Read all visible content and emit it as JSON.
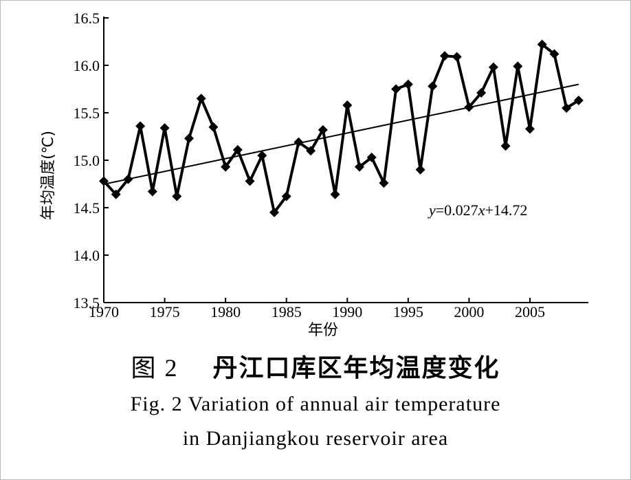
{
  "chart_data": {
    "type": "line",
    "title": "",
    "xlabel": "年份",
    "ylabel": "年均温度(℃)",
    "xlim": [
      1970,
      2009.8
    ],
    "ylim": [
      13.5,
      16.5
    ],
    "x_ticks": [
      "1970",
      "1975",
      "1980",
      "1985",
      "1990",
      "1995",
      "2000",
      "2005"
    ],
    "y_ticks": [
      "13.5",
      "14.0",
      "14.5",
      "15.0",
      "15.5",
      "16.0",
      "16.5"
    ],
    "grid": false,
    "legend": "none",
    "series": [
      {
        "x": [
          1970,
          1971,
          1972,
          1973,
          1974,
          1975,
          1976,
          1977,
          1978,
          1979,
          1980,
          1981,
          1982,
          1983,
          1984,
          1985,
          1986,
          1987,
          1988,
          1989,
          1990,
          1991,
          1992,
          1993,
          1994,
          1995,
          1996,
          1997,
          1998,
          1999,
          2000,
          2001,
          2002,
          2003,
          2004,
          2005,
          2006,
          2007,
          2008,
          2009
        ],
        "values": [
          14.78,
          14.64,
          14.8,
          15.36,
          14.67,
          15.34,
          14.62,
          15.23,
          15.65,
          15.35,
          14.93,
          15.11,
          14.78,
          15.05,
          14.45,
          14.62,
          15.19,
          15.1,
          15.32,
          14.64,
          15.58,
          14.93,
          15.03,
          14.76,
          15.75,
          15.8,
          14.9,
          15.78,
          16.1,
          16.09,
          15.56,
          15.71,
          15.98,
          15.15,
          15.99,
          15.33,
          16.22,
          16.12,
          15.55,
          15.63
        ],
        "marker": "diamond",
        "color": "#000000"
      }
    ],
    "trendline": {
      "slope": 0.027,
      "intercept": 14.72,
      "x_start": 1970,
      "x_end": 2009,
      "label_prefix": "y",
      "label_mid": "=0.027",
      "label_var": "x",
      "label_suffix": "+14.72"
    }
  },
  "caption": {
    "cn_num": "图 2",
    "cn_text": "丹江口库区年均温度变化",
    "en_line1": "Fig. 2    Variation of annual air temperature",
    "en_line2": "in Danjiangkou reservoir area"
  }
}
